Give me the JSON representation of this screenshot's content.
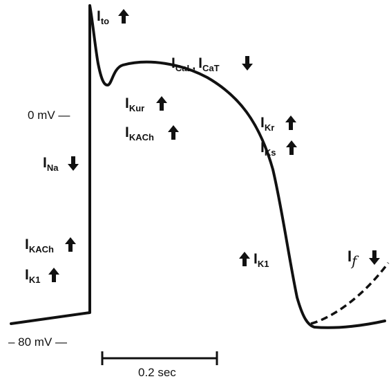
{
  "voltage_labels": {
    "zero": "0 mV —",
    "minus80": "– 80 mV —"
  },
  "scale_bar": {
    "label": "0.2 sec"
  },
  "currents": {
    "ito": {
      "main": "I",
      "sub": "to",
      "arrow": "up"
    },
    "ical": {
      "main": "I",
      "sub": "CaL",
      "sep": ",",
      "main2": "I",
      "sub2": "CaT",
      "arrow": "down"
    },
    "ikur": {
      "main": "I",
      "sub": "Kur",
      "arrow": "up"
    },
    "ikach1": {
      "main": "I",
      "sub": "KACh",
      "arrow": "up"
    },
    "ikr": {
      "main": "I",
      "sub": "Kr",
      "arrow": "up"
    },
    "iks": {
      "main": "I",
      "sub": "Ks",
      "arrow": "up"
    },
    "ina": {
      "main": "I",
      "sub": "Na",
      "arrow": "down"
    },
    "ikach2": {
      "main": "I",
      "sub": "KACh",
      "arrow": "up"
    },
    "ik1a": {
      "main": "I",
      "sub": "K1",
      "arrow": "up"
    },
    "ik1b": {
      "main": "I",
      "sub": "K1",
      "arrow": "up"
    },
    "if": {
      "main": "I",
      "sub": "f",
      "arrow": "down"
    }
  },
  "colors": {
    "ink": "#111111",
    "background": "#ffffff"
  }
}
